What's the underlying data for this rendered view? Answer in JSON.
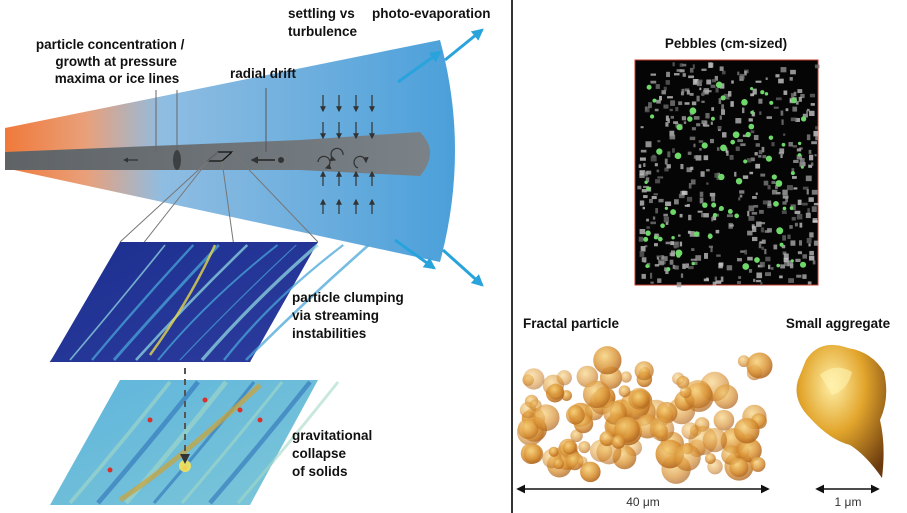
{
  "disk_labels": {
    "concentration": [
      "particle concentration /",
      "growth at pressure",
      "maxima or ice lines"
    ],
    "radial_drift": "radial drift",
    "settling": [
      "settling vs",
      "turbulence"
    ],
    "photo_evaporation": "photo-evaporation"
  },
  "panels": {
    "clumping": [
      "particle clumping",
      "via streaming",
      "instabilities"
    ],
    "collapse": [
      "gravitational",
      "collapse",
      "of solids"
    ]
  },
  "images": {
    "pebbles": "Pebbles (cm-sized)",
    "fractal": {
      "title": "Fractal particle",
      "scale": "40 μm"
    },
    "aggregate": {
      "title": "Small aggregate",
      "scale": "1 μm"
    }
  }
}
